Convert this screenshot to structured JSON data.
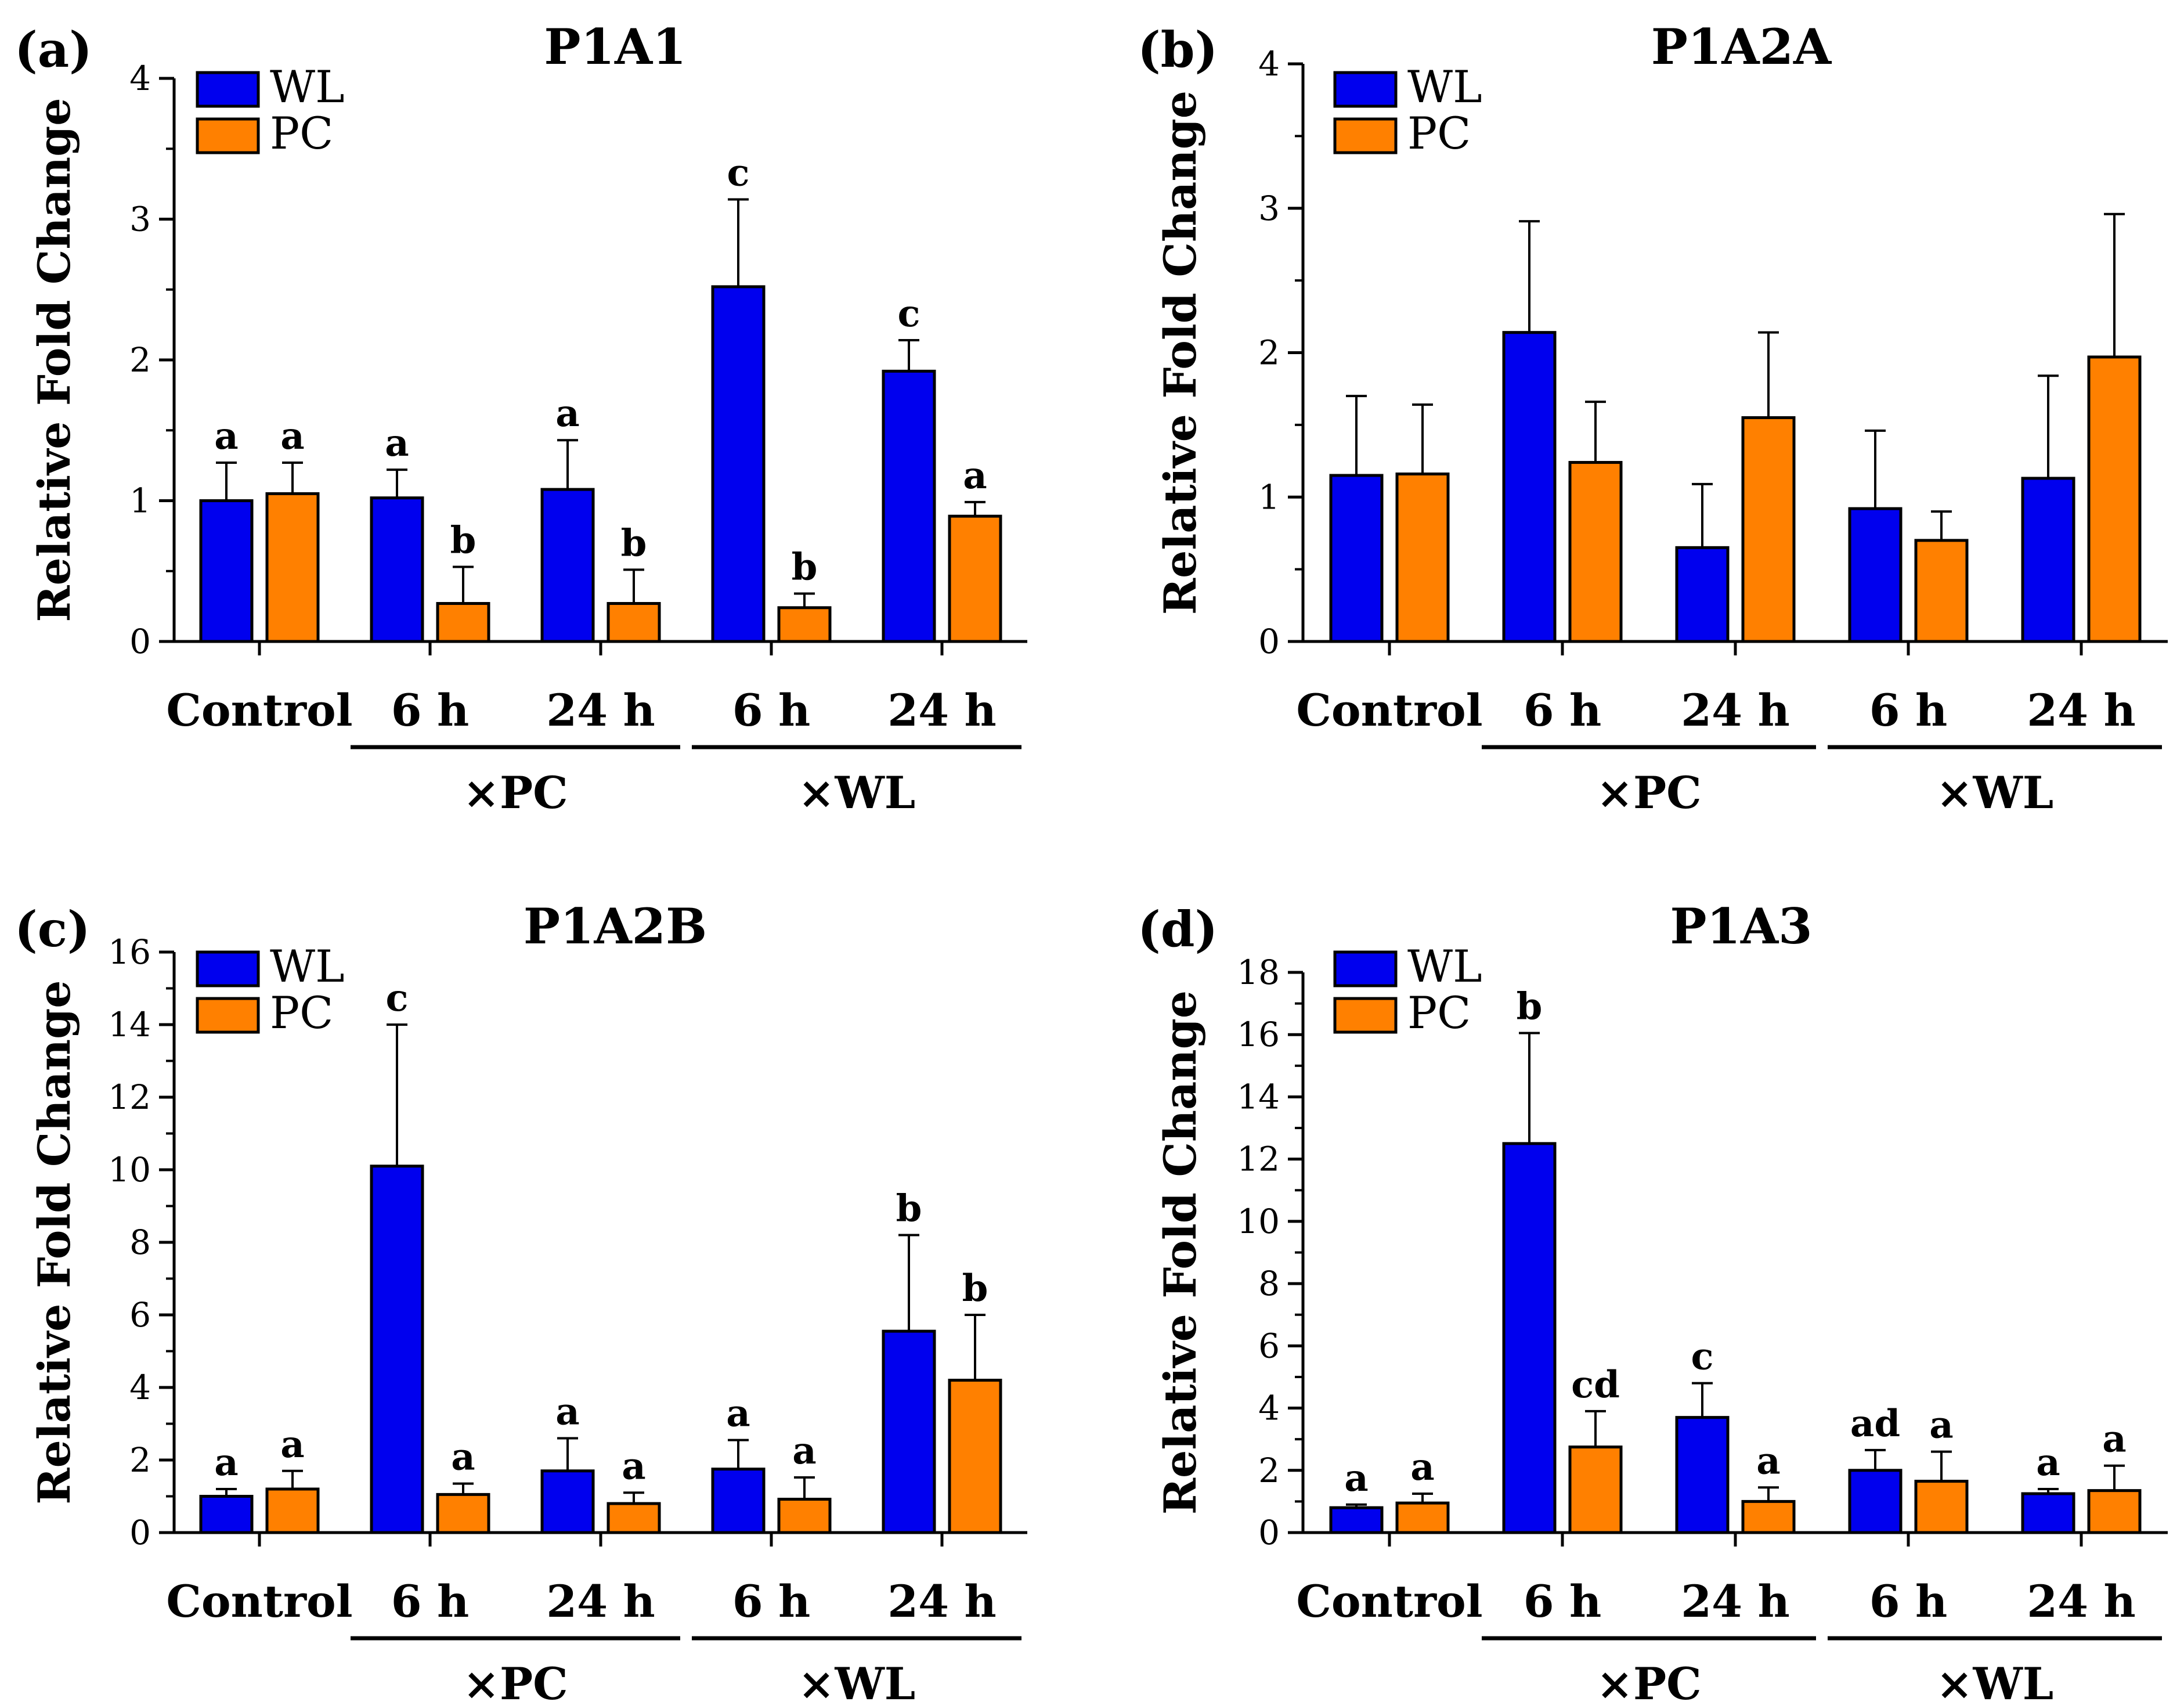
{
  "colors": {
    "WL": "#0000ee",
    "PC": "#ff8000",
    "axis": "#000000"
  },
  "legend": [
    "WL",
    "PC"
  ],
  "categories": [
    "Control",
    "6 h",
    "24 h",
    "6 h",
    "24 h"
  ],
  "groups": [
    {
      "label": "×PC",
      "span": [
        1,
        2
      ]
    },
    {
      "label": "×WL",
      "span": [
        3,
        4
      ]
    }
  ],
  "chart_data": [
    {
      "type": "bar",
      "panel": "(a)",
      "title": "P1A1",
      "ylabel": "Relative Fold Change",
      "ylim": [
        0,
        4
      ],
      "yticks": [
        0,
        1,
        2,
        3,
        4
      ],
      "series": [
        {
          "name": "WL",
          "values": [
            1.0,
            1.02,
            1.08,
            2.52,
            1.92
          ],
          "errors": [
            0.27,
            0.2,
            0.35,
            0.62,
            0.22
          ],
          "letters": [
            "a",
            "a",
            "a",
            "c",
            "c"
          ]
        },
        {
          "name": "PC",
          "values": [
            1.05,
            0.27,
            0.27,
            0.24,
            0.89
          ],
          "errors": [
            0.22,
            0.26,
            0.24,
            0.1,
            0.1
          ],
          "letters": [
            "a",
            "b",
            "b",
            "b",
            "a"
          ]
        }
      ]
    },
    {
      "type": "bar",
      "panel": "(b)",
      "title": "P1A2A",
      "ylabel": "Relative Fold Change",
      "ylim": [
        0,
        4
      ],
      "yticks": [
        0,
        1,
        2,
        3,
        4
      ],
      "series": [
        {
          "name": "WL",
          "values": [
            1.15,
            2.14,
            0.65,
            0.92,
            1.13
          ],
          "errors": [
            0.55,
            0.77,
            0.44,
            0.54,
            0.71
          ],
          "letters": [
            "",
            "",
            "",
            "",
            ""
          ]
        },
        {
          "name": "PC",
          "values": [
            1.16,
            1.24,
            1.55,
            0.7,
            1.97
          ],
          "errors": [
            0.48,
            0.42,
            0.59,
            0.2,
            0.99
          ],
          "letters": [
            "",
            "",
            "",
            "",
            ""
          ]
        }
      ]
    },
    {
      "type": "bar",
      "panel": "(c)",
      "title": "P1A2B",
      "ylabel": "Relative Fold Change",
      "ylim": [
        0,
        16
      ],
      "yticks": [
        0,
        2,
        4,
        6,
        8,
        10,
        12,
        14,
        16
      ],
      "series": [
        {
          "name": "WL",
          "values": [
            1.0,
            10.1,
            1.7,
            1.75,
            5.55
          ],
          "errors": [
            0.2,
            3.9,
            0.9,
            0.8,
            2.65
          ],
          "letters": [
            "a",
            "c",
            "a",
            "a",
            "b"
          ]
        },
        {
          "name": "PC",
          "values": [
            1.2,
            1.05,
            0.8,
            0.92,
            4.2
          ],
          "errors": [
            0.5,
            0.3,
            0.3,
            0.6,
            1.8
          ],
          "letters": [
            "a",
            "a",
            "a",
            "a",
            "b"
          ]
        }
      ]
    },
    {
      "type": "bar",
      "panel": "(d)",
      "title": "P1A3",
      "ylabel": "Relative Fold Change",
      "ylim": [
        0,
        18
      ],
      "yticks": [
        0,
        2,
        4,
        6,
        8,
        10,
        12,
        14,
        16,
        18
      ],
      "series": [
        {
          "name": "WL",
          "values": [
            0.8,
            12.5,
            3.7,
            2.0,
            1.25
          ],
          "errors": [
            0.1,
            3.55,
            1.1,
            0.65,
            0.15
          ],
          "letters": [
            "a",
            "b",
            "c",
            "ad",
            "a"
          ]
        },
        {
          "name": "PC",
          "values": [
            0.95,
            2.75,
            1.0,
            1.65,
            1.35
          ],
          "errors": [
            0.3,
            1.15,
            0.45,
            0.95,
            0.8
          ],
          "letters": [
            "a",
            "cd",
            "a",
            "a",
            "a"
          ]
        }
      ]
    }
  ]
}
